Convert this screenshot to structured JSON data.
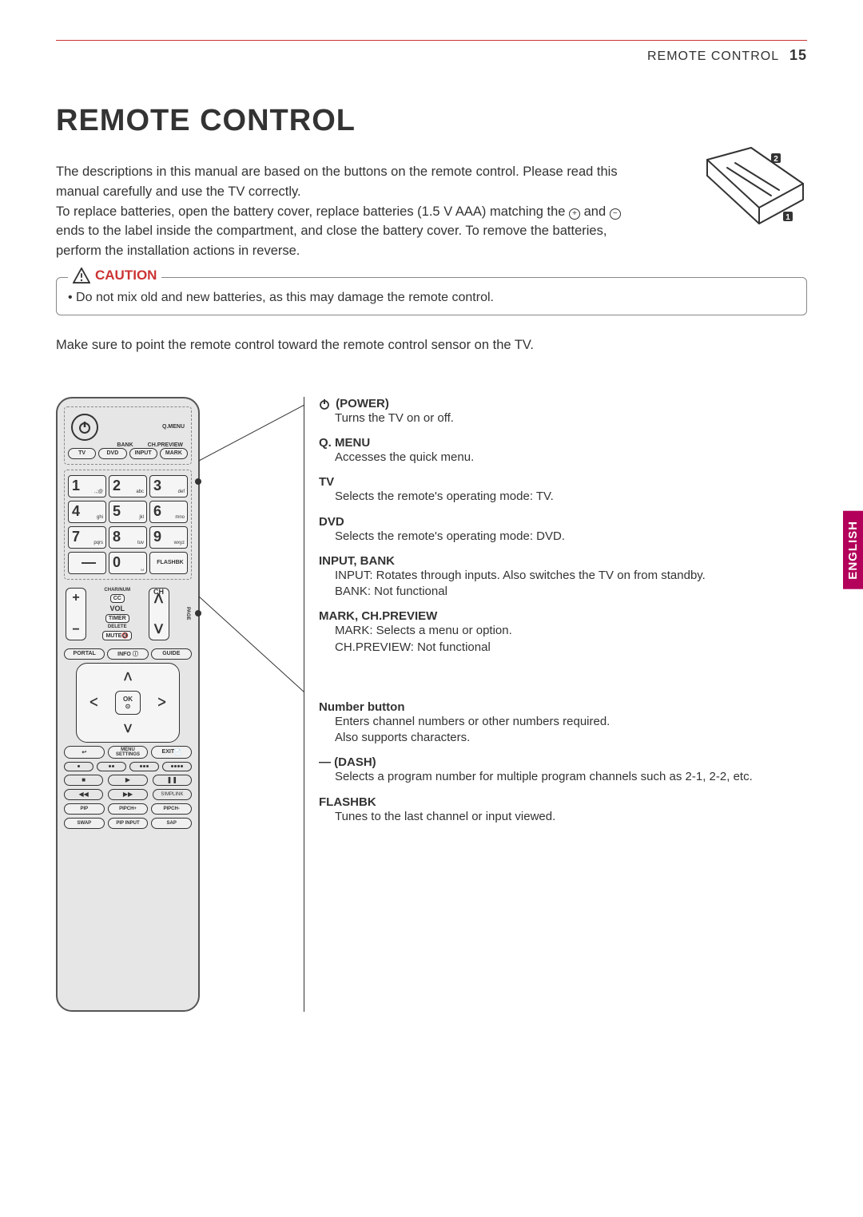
{
  "header": {
    "section": "REMOTE CONTROL",
    "page": "15"
  },
  "title": "REMOTE CONTROL",
  "intro_lines": [
    "The descriptions in this manual are based on the buttons on the remote control.",
    "Please read this manual carefully and use the TV correctly.",
    "To replace batteries, open the battery cover, replace batteries (1.5 V AAA) matching the ",
    " ends to the label inside the compartment, and close the battery cover. To remove the batteries, perform the installation actions in reverse."
  ],
  "intro_and": " and ",
  "caution": {
    "label": "CAUTION",
    "items": [
      "Do not mix old and new batteries, as this may damage the remote control."
    ]
  },
  "sensor_note": "Make sure to point the remote control toward the remote control sensor on the TV.",
  "remote": {
    "qmenu": "Q.MENU",
    "bank": "BANK",
    "chpreview": "CH.PREVIEW",
    "row2": [
      "TV",
      "DVD",
      "INPUT",
      "MARK"
    ],
    "numpad": [
      {
        "n": "1",
        "s": ".,;@"
      },
      {
        "n": "2",
        "s": "abc"
      },
      {
        "n": "3",
        "s": "def"
      },
      {
        "n": "4",
        "s": "ghi"
      },
      {
        "n": "5",
        "s": "jkl"
      },
      {
        "n": "6",
        "s": "mno"
      },
      {
        "n": "7",
        "s": "pqrs"
      },
      {
        "n": "8",
        "s": "tuv"
      },
      {
        "n": "9",
        "s": "wxyz"
      }
    ],
    "dash": "—",
    "zero": {
      "n": "0",
      "s": "␣"
    },
    "flashbk": "FLASHBK",
    "charnum": "CHAR/NUM",
    "cc": "CC",
    "delete": "DELETE",
    "mute": "MUTE",
    "vol": "VOL",
    "timer": "TIMER",
    "ch": "CH",
    "page": "PAGE",
    "portal": "PORTAL",
    "info": "INFO ⓘ",
    "guide": "GUIDE",
    "ok": "OK",
    "back": "↩",
    "menu_top": "MENU",
    "menu_bot": "SETTINGS",
    "exit": "EXIT",
    "pip": [
      "PIP",
      "PIPCH+",
      "PIPCH-"
    ],
    "swap": [
      "SWAP",
      "PIP INPUT",
      "SAP"
    ],
    "simplink": "S!MPLINK"
  },
  "descriptions": {
    "group1": [
      {
        "t": "(POWER)",
        "icon": true,
        "d": "Turns the TV on or off."
      },
      {
        "t": "Q. MENU",
        "d": "Accesses the quick menu."
      },
      {
        "t": "TV",
        "d": "Selects the remote's operating mode: TV."
      },
      {
        "t": "DVD",
        "d": "Selects the remote's operating mode: DVD."
      },
      {
        "t": "INPUT, BANK",
        "d": "INPUT: Rotates through inputs. Also switches the TV on from standby.\nBANK: Not functional"
      },
      {
        "t": "MARK, CH.PREVIEW",
        "d": "MARK: Selects a menu or option.\nCH.PREVIEW: Not functional"
      }
    ],
    "group2": [
      {
        "t": "Number button",
        "d": "Enters channel numbers or other numbers required.\nAlso supports characters."
      },
      {
        "t": "— (DASH)",
        "d": "Selects a program number for multiple program channels such as 2-1, 2-2, etc."
      },
      {
        "t": "FLASHBK",
        "d": "Tunes to the last channel or input viewed."
      }
    ]
  },
  "lang_tab": "ENGLISH",
  "colors": {
    "accent": "#c62444",
    "tab": "#b3005a"
  }
}
